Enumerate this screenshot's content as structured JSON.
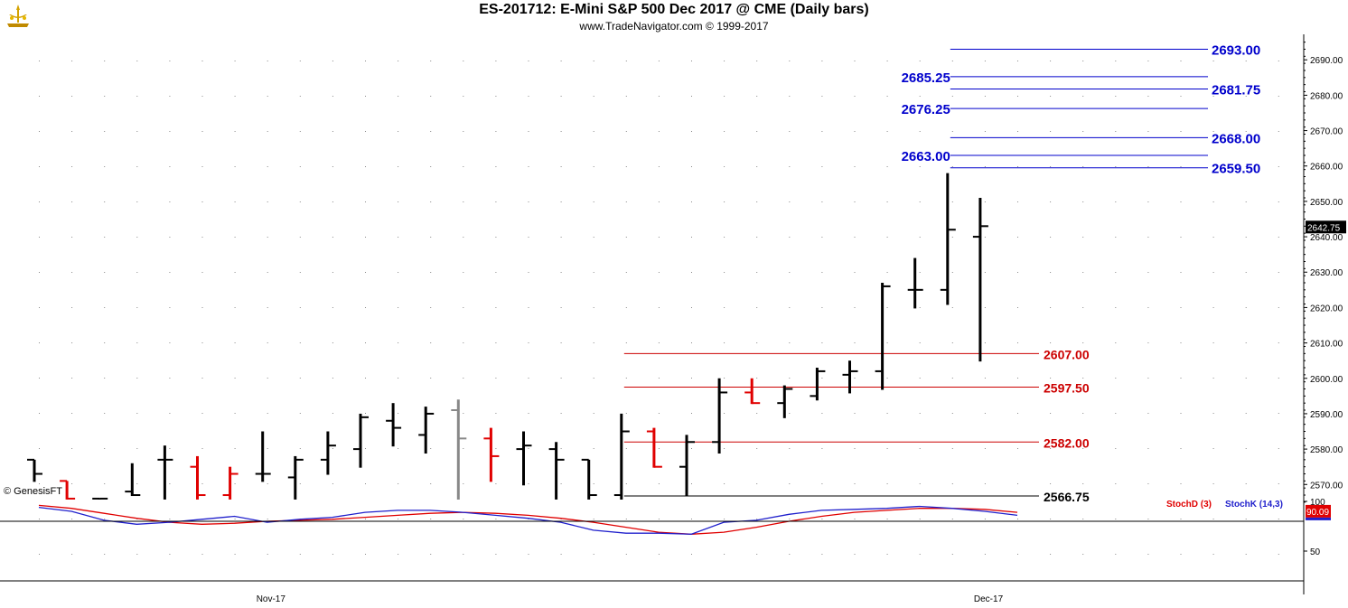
{
  "header": {
    "title": "ES-201712:  E-Mini S&P 500 Dec 2017 @ CME  (Daily bars)",
    "subtitle": "www.TradeNavigator.com © 1999-2017"
  },
  "watermark": "© GenesisFT",
  "colors": {
    "up_bar": "#000000",
    "down_bar": "#e00000",
    "neutral_bar": "#888888",
    "blue_levels": "#0000cc",
    "red_levels": "#cc0000",
    "stoch_d": "#e00000",
    "stoch_k": "#2020cc"
  },
  "chart_data": [
    {
      "type": "bar",
      "subtype": "ohlc",
      "ylim": [
        2563,
        2697
      ],
      "yticks": [
        "2570.00",
        "2580.00",
        "2590.00",
        "2600.00",
        "2610.00",
        "2620.00",
        "2630.00",
        "2640.00",
        "2650.00",
        "2660.00",
        "2670.00",
        "2680.00",
        "2690.00"
      ],
      "x_labels": [
        {
          "label": "Nov-17",
          "index": 7
        },
        {
          "label": "Dec-17",
          "index": 29
        }
      ],
      "last_price": "2642.75",
      "bars": [
        {
          "o": 2577,
          "h": 2577,
          "l": 2571,
          "c": 2573,
          "color": "up"
        },
        {
          "o": 2571,
          "h": 2571,
          "l": 2566,
          "c": 2566,
          "color": "down"
        },
        {
          "o": 2566,
          "h": 2566,
          "l": 2566,
          "c": 2566,
          "color": "up"
        },
        {
          "o": 2568,
          "h": 2576,
          "l": 2567,
          "c": 2567,
          "color": "up"
        },
        {
          "o": 2577,
          "h": 2581,
          "l": 2566,
          "c": 2577,
          "color": "up"
        },
        {
          "o": 2575,
          "h": 2578,
          "l": 2566,
          "c": 2567,
          "color": "down"
        },
        {
          "o": 2567,
          "h": 2575,
          "l": 2566,
          "c": 2573,
          "color": "down"
        },
        {
          "o": 2573,
          "h": 2585,
          "l": 2571,
          "c": 2573,
          "color": "up"
        },
        {
          "o": 2572,
          "h": 2578,
          "l": 2566,
          "c": 2577,
          "color": "up"
        },
        {
          "o": 2577,
          "h": 2585,
          "l": 2573,
          "c": 2581,
          "color": "up"
        },
        {
          "o": 2580,
          "h": 2590,
          "l": 2575,
          "c": 2589,
          "color": "up"
        },
        {
          "o": 2588,
          "h": 2593,
          "l": 2581,
          "c": 2586,
          "color": "up"
        },
        {
          "o": 2584,
          "h": 2592,
          "l": 2579,
          "c": 2590,
          "color": "up"
        },
        {
          "o": 2591,
          "h": 2594,
          "l": 2566,
          "c": 2583,
          "color": "neutral"
        },
        {
          "o": 2583,
          "h": 2586,
          "l": 2571,
          "c": 2578,
          "color": "down"
        },
        {
          "o": 2580,
          "h": 2585,
          "l": 2570,
          "c": 2581,
          "color": "up"
        },
        {
          "o": 2580,
          "h": 2582,
          "l": 2566,
          "c": 2577,
          "color": "up"
        },
        {
          "o": 2577,
          "h": 2577,
          "l": 2566,
          "c": 2567,
          "color": "up"
        },
        {
          "o": 2567,
          "h": 2590,
          "l": 2566,
          "c": 2585,
          "color": "up"
        },
        {
          "o": 2585,
          "h": 2586,
          "l": 2575,
          "c": 2575,
          "color": "down"
        },
        {
          "o": 2575,
          "h": 2584,
          "l": 2567,
          "c": 2582,
          "color": "up"
        },
        {
          "o": 2582,
          "h": 2600,
          "l": 2579,
          "c": 2596,
          "color": "up"
        },
        {
          "o": 2596,
          "h": 2600,
          "l": 2593,
          "c": 2593,
          "color": "down"
        },
        {
          "o": 2593,
          "h": 2598,
          "l": 2589,
          "c": 2597,
          "color": "up"
        },
        {
          "o": 2595,
          "h": 2603,
          "l": 2594,
          "c": 2602,
          "color": "up"
        },
        {
          "o": 2601,
          "h": 2605,
          "l": 2596,
          "c": 2602,
          "color": "up"
        },
        {
          "o": 2602,
          "h": 2627,
          "l": 2597,
          "c": 2626,
          "color": "up"
        },
        {
          "o": 2625,
          "h": 2634,
          "l": 2620,
          "c": 2625,
          "color": "up"
        },
        {
          "o": 2625,
          "h": 2658,
          "l": 2621,
          "c": 2642,
          "color": "up"
        },
        {
          "o": 2640,
          "h": 2651,
          "l": 2605,
          "c": 2643,
          "color": "up"
        }
      ],
      "levels": [
        {
          "value": 2693.0,
          "label": "2693.00",
          "color": "blue",
          "start_index": 28,
          "label_side": "right"
        },
        {
          "value": 2685.25,
          "label": "2685.25",
          "color": "blue",
          "start_index": 28,
          "label_side": "left"
        },
        {
          "value": 2681.75,
          "label": "2681.75",
          "color": "blue",
          "start_index": 28,
          "label_side": "right"
        },
        {
          "value": 2676.25,
          "label": "2676.25",
          "color": "blue",
          "start_index": 28,
          "label_side": "left"
        },
        {
          "value": 2668.0,
          "label": "2668.00",
          "color": "blue",
          "start_index": 28,
          "label_side": "right"
        },
        {
          "value": 2663.0,
          "label": "2663.00",
          "color": "blue",
          "start_index": 28,
          "label_side": "left"
        },
        {
          "value": 2659.5,
          "label": "2659.50",
          "color": "blue",
          "start_index": 28,
          "label_side": "right"
        },
        {
          "value": 2607.0,
          "label": "2607.00",
          "color": "red",
          "start_index": 18,
          "label_side": "right"
        },
        {
          "value": 2597.5,
          "label": "2597.50",
          "color": "red",
          "start_index": 18,
          "label_side": "right"
        },
        {
          "value": 2582.0,
          "label": "2582.00",
          "color": "red",
          "start_index": 18,
          "label_side": "right"
        },
        {
          "value": 2566.75,
          "label": "2566.75",
          "color": "black",
          "start_index": 18,
          "label_side": "right"
        }
      ]
    },
    {
      "type": "line",
      "ylim": [
        20,
        102
      ],
      "yticks": [
        "100",
        "50"
      ],
      "legend": [
        "StochD (3)",
        "StochK (14,3)"
      ],
      "last_value": "90.09",
      "series": [
        {
          "name": "StochD (3)",
          "color": "#e00000",
          "values": [
            96,
            93,
            88,
            83,
            79,
            77,
            78,
            80,
            81,
            82,
            84,
            86,
            88,
            89,
            88,
            86,
            83,
            79,
            74,
            69,
            67,
            69,
            74,
            80,
            85,
            89,
            91,
            93,
            93,
            92,
            89
          ]
        },
        {
          "name": "StochK (14,3)",
          "color": "#2020cc",
          "values": [
            94,
            90,
            81,
            77,
            79,
            82,
            85,
            79,
            82,
            84,
            89,
            91,
            91,
            89,
            86,
            83,
            79,
            71,
            68,
            68,
            67,
            79,
            81,
            87,
            91,
            92,
            93,
            95,
            93,
            90,
            86
          ]
        }
      ]
    }
  ]
}
